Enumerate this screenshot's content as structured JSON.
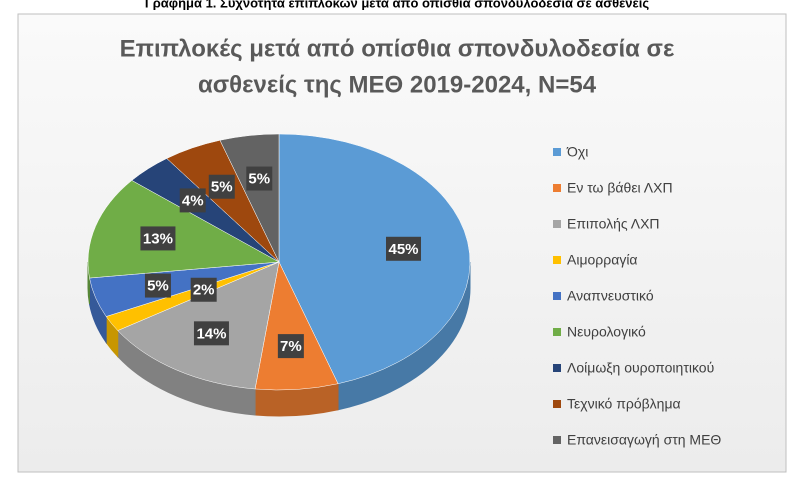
{
  "caption": "Γράφημα 1. Συχνότητα επιπλοκών μετά από οπίσθια σπονδυλοδεσία σε ασθενείς",
  "chart_data": {
    "type": "pie",
    "title": [
      "Επιπλοκές μετά από οπίσθια σπονδυλοδεσία σε",
      "ασθενείς της ΜΕΘ 2019-2024, N=54"
    ],
    "categories": [
      "Όχι",
      "Εν τω βάθει ΛΧΠ",
      "Επιπολής ΛΧΠ",
      "Αιμορραγία",
      "Αναπνευστικό",
      "Νευρολογικό",
      "Λοίμωξη ουροποιητικού",
      "Τεχνικό πρόβλημα",
      "Επανεισαγωγή στη ΜΕΘ"
    ],
    "values": [
      45,
      7,
      14,
      2,
      5,
      13,
      4,
      5,
      5
    ],
    "value_labels": [
      "45%",
      "7%",
      "14%",
      "2%",
      "5%",
      "13%",
      "4%",
      "5%",
      "5%"
    ],
    "colors": [
      "#5b9bd5",
      "#ed7d31",
      "#a5a5a5",
      "#ffc000",
      "#4472c4",
      "#70ad47",
      "#264478",
      "#9e480e",
      "#636363"
    ],
    "legend": "right"
  }
}
